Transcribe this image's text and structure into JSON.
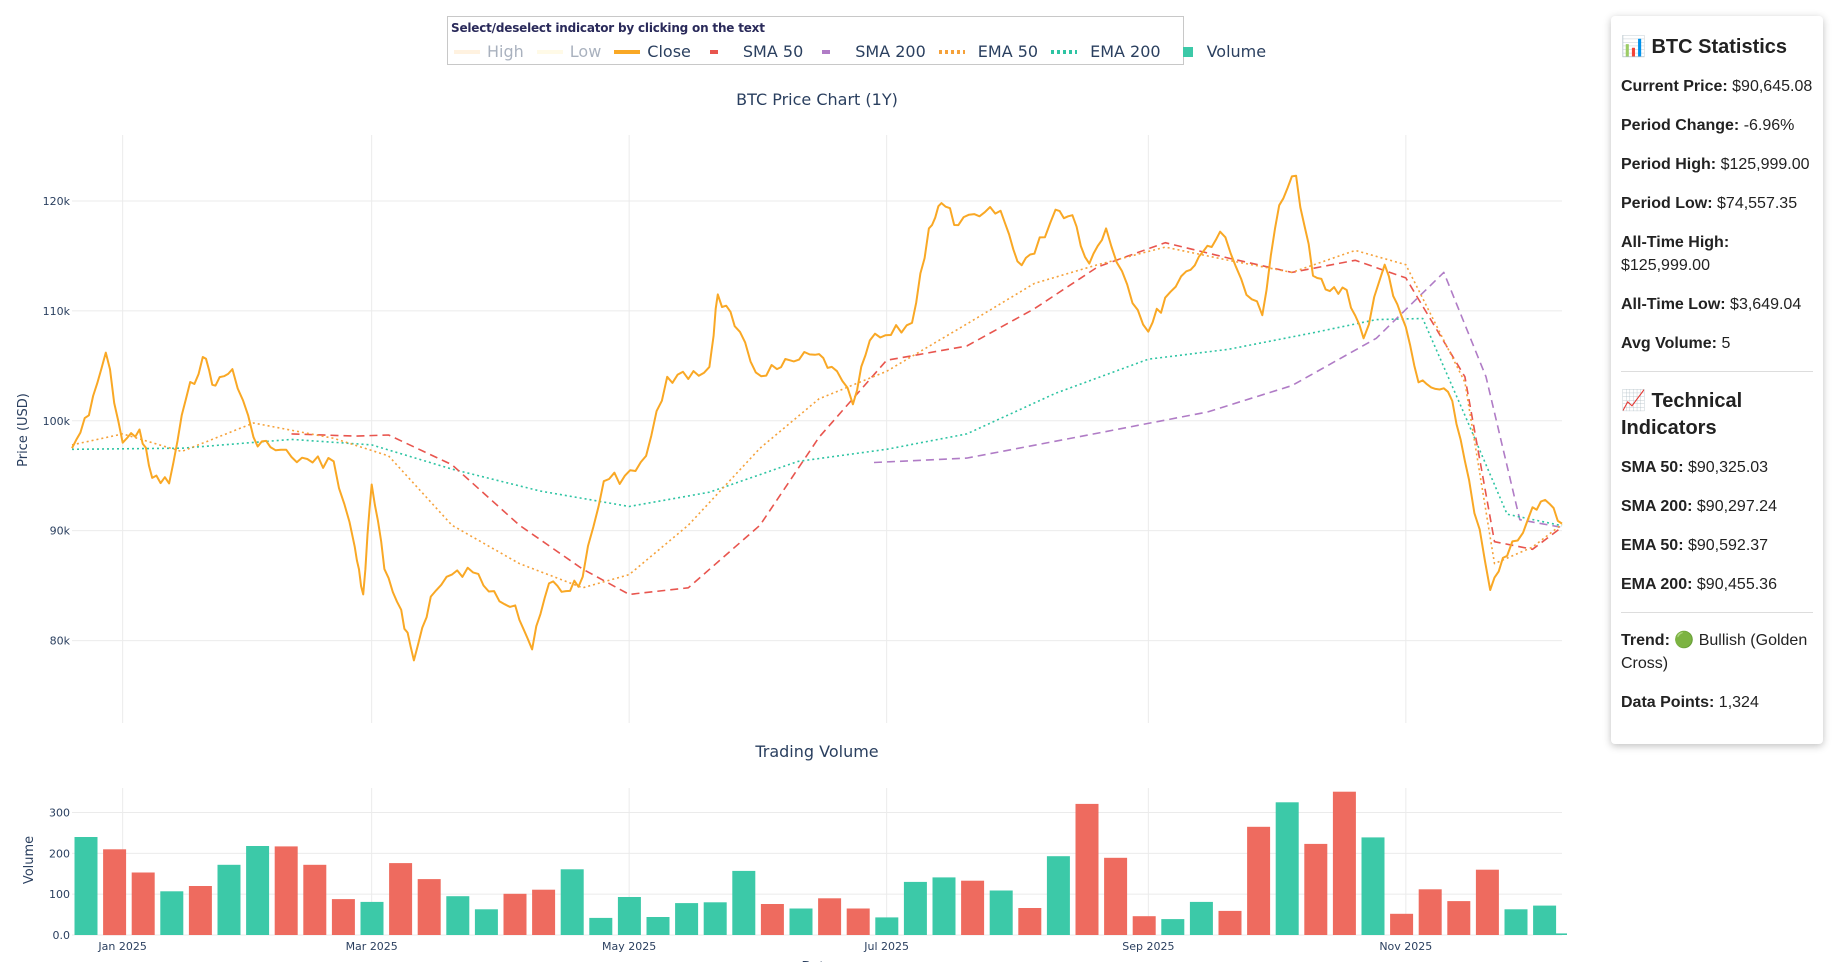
{
  "legend": {
    "hint": "Select/deselect indicator by clicking on the text",
    "items": [
      {
        "label": "High",
        "color": "#ffe0b2",
        "style": "solid",
        "visible": false
      },
      {
        "label": "Low",
        "color": "#fff3c4",
        "style": "solid",
        "visible": false
      },
      {
        "label": "Close",
        "color": "#f9a825",
        "style": "solid",
        "visible": true
      },
      {
        "label": "SMA 50",
        "color": "#e8554e",
        "style": "dash",
        "visible": true
      },
      {
        "label": "SMA 200",
        "color": "#b07cc6",
        "style": "dash",
        "visible": true
      },
      {
        "label": "EMA 50",
        "color": "#f5a13a",
        "style": "dot",
        "visible": true
      },
      {
        "label": "EMA 200",
        "color": "#2ec4a3",
        "style": "dot",
        "visible": true
      },
      {
        "label": "Volume",
        "color": "#3cc9a8",
        "style": "square",
        "visible": true
      }
    ]
  },
  "stats": {
    "title": "📊 BTC Statistics",
    "rows": [
      {
        "label": "Current Price:",
        "value": "$90,645.08"
      },
      {
        "label": "Period Change:",
        "value": "-6.96%"
      },
      {
        "label": "Period High:",
        "value": "$125,999.00"
      },
      {
        "label": "Period Low:",
        "value": "$74,557.35"
      },
      {
        "label": "All-Time High:",
        "value": "$125,999.00"
      },
      {
        "label": "All-Time Low:",
        "value": "$3,649.04"
      },
      {
        "label": "Avg Volume:",
        "value": "5"
      }
    ],
    "tech_title": "📈 Technical Indicators",
    "tech_rows": [
      {
        "label": "SMA 50:",
        "value": "$90,325.03"
      },
      {
        "label": "SMA 200:",
        "value": "$90,297.24"
      },
      {
        "label": "EMA 50:",
        "value": "$90,592.37"
      },
      {
        "label": "EMA 200:",
        "value": "$90,455.36"
      }
    ],
    "trend_label": "Trend:",
    "trend_value": "🟢 Bullish (Golden Cross)",
    "points_label": "Data Points:",
    "points_value": "1,324"
  },
  "colors": {
    "close": "#f9a825",
    "sma50": "#e8554e",
    "sma200": "#b07cc6",
    "ema50": "#f5a13a",
    "ema200": "#2ec4a3",
    "vol_up": "#3cc9a8",
    "vol_down": "#ee6b5f",
    "grid": "#ebebeb",
    "text": "#2a3f5f"
  },
  "chart_data": [
    {
      "type": "line",
      "title": "BTC Price Chart (1Y)",
      "xlabel": "",
      "ylabel": "Price (USD)",
      "x_ticks": [
        "Jan 2025",
        "Mar 2025",
        "May 2025",
        "Jul 2025",
        "Sep 2025",
        "Nov 2025"
      ],
      "x_range": [
        "2024-12-20",
        "2025-12-08"
      ],
      "y_ticks": [
        "80k",
        "90k",
        "100k",
        "110k",
        "120k"
      ],
      "y_tick_values": [
        80000,
        90000,
        100000,
        110000,
        120000
      ],
      "ylim": [
        72500,
        126000
      ],
      "series": [
        {
          "name": "Close",
          "dates": [
            "2024-12-20",
            "2024-12-24",
            "2024-12-28",
            "2025-01-01",
            "2025-01-05",
            "2025-01-08",
            "2025-01-12",
            "2025-01-16",
            "2025-01-20",
            "2025-01-23",
            "2025-01-27",
            "2025-02-01",
            "2025-02-05",
            "2025-02-10",
            "2025-02-15",
            "2025-02-20",
            "2025-02-25",
            "2025-02-27",
            "2025-03-01",
            "2025-03-04",
            "2025-03-08",
            "2025-03-11",
            "2025-03-15",
            "2025-03-20",
            "2025-03-25",
            "2025-03-30",
            "2025-04-04",
            "2025-04-08",
            "2025-04-12",
            "2025-04-16",
            "2025-04-20",
            "2025-04-25",
            "2025-04-30",
            "2025-05-05",
            "2025-05-10",
            "2025-05-15",
            "2025-05-20",
            "2025-05-22",
            "2025-05-26",
            "2025-05-31",
            "2025-06-05",
            "2025-06-09",
            "2025-06-14",
            "2025-06-18",
            "2025-06-23",
            "2025-06-27",
            "2025-07-02",
            "2025-07-07",
            "2025-07-11",
            "2025-07-14",
            "2025-07-18",
            "2025-07-23",
            "2025-07-28",
            "2025-08-01",
            "2025-08-05",
            "2025-08-10",
            "2025-08-14",
            "2025-08-18",
            "2025-08-22",
            "2025-08-27",
            "2025-09-01",
            "2025-09-05",
            "2025-09-10",
            "2025-09-14",
            "2025-09-18",
            "2025-09-23",
            "2025-09-28",
            "2025-10-02",
            "2025-10-06",
            "2025-10-10",
            "2025-10-14",
            "2025-10-18",
            "2025-10-22",
            "2025-10-27",
            "2025-10-31",
            "2025-11-04",
            "2025-11-08",
            "2025-11-12",
            "2025-11-16",
            "2025-11-21",
            "2025-11-25",
            "2025-11-30",
            "2025-12-04",
            "2025-12-08"
          ],
          "values": [
            97500,
            100500,
            106200,
            98000,
            99200,
            94800,
            94300,
            102000,
            105800,
            103200,
            104700,
            98500,
            97600,
            96700,
            96200,
            96300,
            88500,
            84200,
            94200,
            86500,
            82800,
            78200,
            84000,
            86000,
            86200,
            84500,
            83200,
            79200,
            85200,
            84500,
            85800,
            94500,
            95000,
            96800,
            104000,
            103800,
            104900,
            111500,
            108600,
            104400,
            104700,
            105400,
            106000,
            104900,
            101500,
            107300,
            107800,
            108900,
            117500,
            119800,
            117800,
            118600,
            119100,
            114500,
            115200,
            119200,
            118700,
            114300,
            117500,
            112400,
            108100,
            111200,
            113600,
            115400,
            117200,
            112900,
            109600,
            119600,
            122300,
            113200,
            111800,
            111900,
            107500,
            114200,
            109500,
            103500,
            102900,
            101800,
            94600,
            84600,
            87700,
            91100,
            92800,
            90645
          ]
        },
        {
          "name": "SMA 50",
          "dates": [
            "2025-02-10",
            "2025-02-25",
            "2025-03-05",
            "2025-03-20",
            "2025-04-05",
            "2025-04-20",
            "2025-05-01",
            "2025-05-15",
            "2025-06-01",
            "2025-06-15",
            "2025-07-01",
            "2025-07-20",
            "2025-08-05",
            "2025-08-20",
            "2025-09-05",
            "2025-09-20",
            "2025-10-05",
            "2025-10-20",
            "2025-11-01",
            "2025-11-15",
            "2025-11-22",
            "2025-12-01",
            "2025-12-08"
          ],
          "values": [
            98800,
            98600,
            98700,
            96000,
            90500,
            86500,
            84200,
            84800,
            90500,
            98500,
            105500,
            106800,
            110200,
            114000,
            116200,
            114800,
            113500,
            114600,
            113000,
            104000,
            89000,
            88300,
            90325
          ]
        },
        {
          "name": "SMA 200",
          "dates": [
            "2025-06-28",
            "2025-07-20",
            "2025-08-15",
            "2025-09-15",
            "2025-10-05",
            "2025-10-25",
            "2025-11-10",
            "2025-11-20",
            "2025-11-28",
            "2025-12-08"
          ],
          "values": [
            96200,
            96600,
            98500,
            100800,
            103200,
            107500,
            113500,
            104000,
            91000,
            90297
          ]
        },
        {
          "name": "EMA 50",
          "dates": [
            "2024-12-20",
            "2025-01-01",
            "2025-01-15",
            "2025-02-01",
            "2025-02-20",
            "2025-03-05",
            "2025-03-20",
            "2025-04-05",
            "2025-04-20",
            "2025-05-01",
            "2025-05-15",
            "2025-06-01",
            "2025-06-15",
            "2025-07-01",
            "2025-07-20",
            "2025-08-05",
            "2025-08-20",
            "2025-09-05",
            "2025-09-20",
            "2025-10-05",
            "2025-10-20",
            "2025-11-01",
            "2025-11-15",
            "2025-11-22",
            "2025-12-01",
            "2025-12-08"
          ],
          "values": [
            97800,
            98800,
            97200,
            99800,
            98400,
            96800,
            90500,
            87000,
            84800,
            86000,
            90500,
            97500,
            102000,
            104500,
            108800,
            112500,
            114200,
            115800,
            114600,
            113500,
            115500,
            114200,
            103500,
            87000,
            88500,
            90592
          ]
        },
        {
          "name": "EMA 200",
          "dates": [
            "2024-12-20",
            "2025-01-15",
            "2025-02-10",
            "2025-03-01",
            "2025-03-20",
            "2025-04-10",
            "2025-05-01",
            "2025-05-20",
            "2025-06-10",
            "2025-07-01",
            "2025-07-20",
            "2025-08-10",
            "2025-09-01",
            "2025-09-20",
            "2025-10-10",
            "2025-10-25",
            "2025-11-05",
            "2025-11-15",
            "2025-11-25",
            "2025-12-08"
          ],
          "values": [
            97400,
            97500,
            98300,
            97800,
            95600,
            93600,
            92200,
            93500,
            96300,
            97400,
            98800,
            102500,
            105600,
            106500,
            108000,
            109200,
            109300,
            100500,
            91500,
            90455
          ]
        }
      ]
    },
    {
      "type": "bar",
      "title": "Trading Volume",
      "xlabel": "Date",
      "ylabel": "Volume",
      "x_ticks": [
        "Jan 2025",
        "Mar 2025",
        "May 2025",
        "Jul 2025",
        "Sep 2025",
        "Nov 2025"
      ],
      "y_ticks": [
        "0.0",
        "100",
        "200",
        "300"
      ],
      "y_tick_values": [
        0,
        100,
        200,
        300
      ],
      "ylim": [
        0,
        360
      ],
      "bars": [
        {
          "date": "2024-12-20",
          "value": 240,
          "dir": "up"
        },
        {
          "date": "2024-12-27",
          "value": 210,
          "dir": "down"
        },
        {
          "date": "2025-01-03",
          "value": 153,
          "dir": "down"
        },
        {
          "date": "2025-01-10",
          "value": 107,
          "dir": "up"
        },
        {
          "date": "2025-01-17",
          "value": 120,
          "dir": "down"
        },
        {
          "date": "2025-01-24",
          "value": 172,
          "dir": "up"
        },
        {
          "date": "2025-01-31",
          "value": 218,
          "dir": "up"
        },
        {
          "date": "2025-02-07",
          "value": 217,
          "dir": "down"
        },
        {
          "date": "2025-02-14",
          "value": 172,
          "dir": "down"
        },
        {
          "date": "2025-02-21",
          "value": 88,
          "dir": "down"
        },
        {
          "date": "2025-02-28",
          "value": 81,
          "dir": "up"
        },
        {
          "date": "2025-03-07",
          "value": 176,
          "dir": "down"
        },
        {
          "date": "2025-03-14",
          "value": 137,
          "dir": "down"
        },
        {
          "date": "2025-03-21",
          "value": 95,
          "dir": "up"
        },
        {
          "date": "2025-03-28",
          "value": 63,
          "dir": "up"
        },
        {
          "date": "2025-04-04",
          "value": 101,
          "dir": "down"
        },
        {
          "date": "2025-04-11",
          "value": 111,
          "dir": "down"
        },
        {
          "date": "2025-04-18",
          "value": 161,
          "dir": "up"
        },
        {
          "date": "2025-04-25",
          "value": 42,
          "dir": "up"
        },
        {
          "date": "2025-05-02",
          "value": 93,
          "dir": "up"
        },
        {
          "date": "2025-05-09",
          "value": 44,
          "dir": "up"
        },
        {
          "date": "2025-05-16",
          "value": 78,
          "dir": "up"
        },
        {
          "date": "2025-05-23",
          "value": 80,
          "dir": "up"
        },
        {
          "date": "2025-05-30",
          "value": 157,
          "dir": "up"
        },
        {
          "date": "2025-06-06",
          "value": 76,
          "dir": "down"
        },
        {
          "date": "2025-06-13",
          "value": 65,
          "dir": "up"
        },
        {
          "date": "2025-06-20",
          "value": 90,
          "dir": "down"
        },
        {
          "date": "2025-06-27",
          "value": 65,
          "dir": "down"
        },
        {
          "date": "2025-07-04",
          "value": 43,
          "dir": "up"
        },
        {
          "date": "2025-07-11",
          "value": 130,
          "dir": "up"
        },
        {
          "date": "2025-07-18",
          "value": 141,
          "dir": "up"
        },
        {
          "date": "2025-07-25",
          "value": 133,
          "dir": "down"
        },
        {
          "date": "2025-08-01",
          "value": 109,
          "dir": "up"
        },
        {
          "date": "2025-08-08",
          "value": 66,
          "dir": "down"
        },
        {
          "date": "2025-08-15",
          "value": 193,
          "dir": "up"
        },
        {
          "date": "2025-08-22",
          "value": 321,
          "dir": "down"
        },
        {
          "date": "2025-08-29",
          "value": 189,
          "dir": "down"
        },
        {
          "date": "2025-09-05",
          "value": 46,
          "dir": "down"
        },
        {
          "date": "2025-09-12",
          "value": 39,
          "dir": "up"
        },
        {
          "date": "2025-09-19",
          "value": 81,
          "dir": "up"
        },
        {
          "date": "2025-09-26",
          "value": 59,
          "dir": "down"
        },
        {
          "date": "2025-10-03",
          "value": 265,
          "dir": "down"
        },
        {
          "date": "2025-10-10",
          "value": 325,
          "dir": "up"
        },
        {
          "date": "2025-10-17",
          "value": 223,
          "dir": "down"
        },
        {
          "date": "2025-10-24",
          "value": 351,
          "dir": "down"
        },
        {
          "date": "2025-10-31",
          "value": 239,
          "dir": "up"
        },
        {
          "date": "2025-11-07",
          "value": 52,
          "dir": "down"
        },
        {
          "date": "2025-11-14",
          "value": 112,
          "dir": "down"
        },
        {
          "date": "2025-11-21",
          "value": 83,
          "dir": "down"
        },
        {
          "date": "2025-11-28",
          "value": 160,
          "dir": "down"
        },
        {
          "date": "2025-12-05",
          "value": 63,
          "dir": "up"
        },
        {
          "date": "2025-12-08",
          "value": 72,
          "dir": "up"
        },
        {
          "date": "2025-12-11",
          "value": 4,
          "dir": "up"
        }
      ]
    }
  ]
}
